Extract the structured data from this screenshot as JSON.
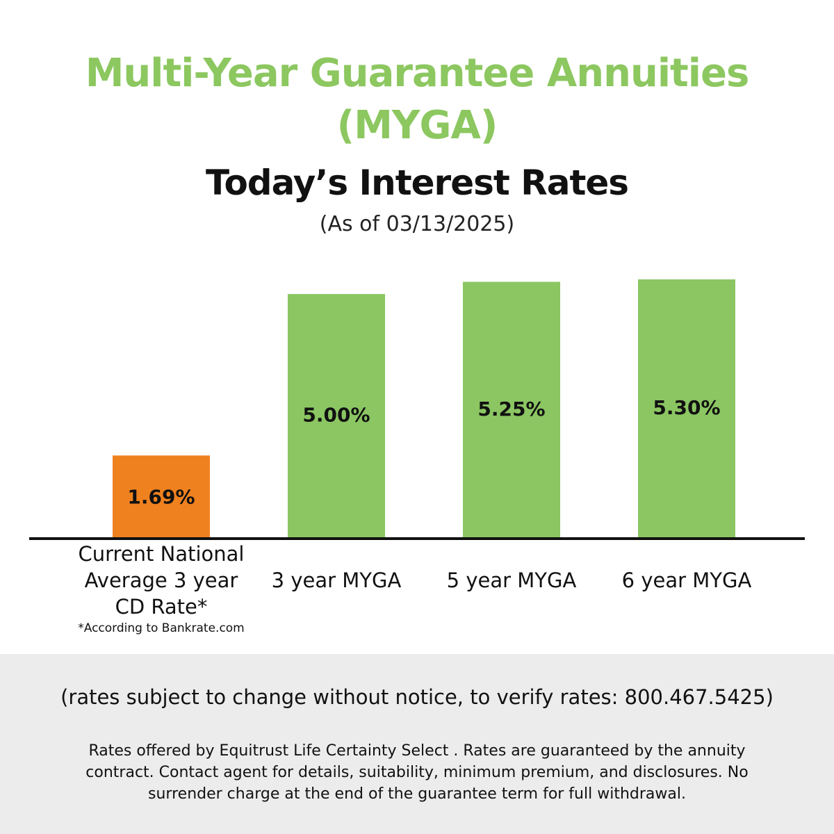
{
  "header": {
    "title_line1": "Multi-Year Guarantee Annuities",
    "title_line2": "(MYGA)",
    "subtitle": "Today’s Interest Rates",
    "as_of": "(As of 03/13/2025)",
    "title_color": "#8cc760"
  },
  "chart_data": {
    "type": "bar",
    "title": "Today’s Interest Rates",
    "categories": [
      "Current National Average 3 year CD Rate*",
      "3 year MYGA",
      "5 year MYGA",
      "6 year MYGA"
    ],
    "category_lines": [
      [
        "Current National",
        "Average 3 year",
        "CD Rate*"
      ],
      [
        "3 year MYGA"
      ],
      [
        "5 year MYGA"
      ],
      [
        "6 year MYGA"
      ]
    ],
    "values": [
      1.69,
      5.0,
      5.25,
      5.3
    ],
    "value_labels": [
      "1.69%",
      "5.00%",
      "5.25%",
      "5.30%"
    ],
    "colors": [
      "#f0811f",
      "#8bc662",
      "#8bc662",
      "#8bc662"
    ],
    "ylim": [
      0,
      5.3
    ],
    "grid": false,
    "xlabel": "",
    "ylabel": "",
    "footnote": "*According to Bankrate.com"
  },
  "footer": {
    "rates_note": "(rates subject to change without notice, to verify rates: 800.467.5425)",
    "disclaimer": "Rates offered by Equitrust Life Certainty Select . Rates are guaranteed by the annuity contract. Contact agent for details, suitability, minimum premium, and disclosures. No surrender charge at the end of the guarantee term for full withdrawal."
  }
}
